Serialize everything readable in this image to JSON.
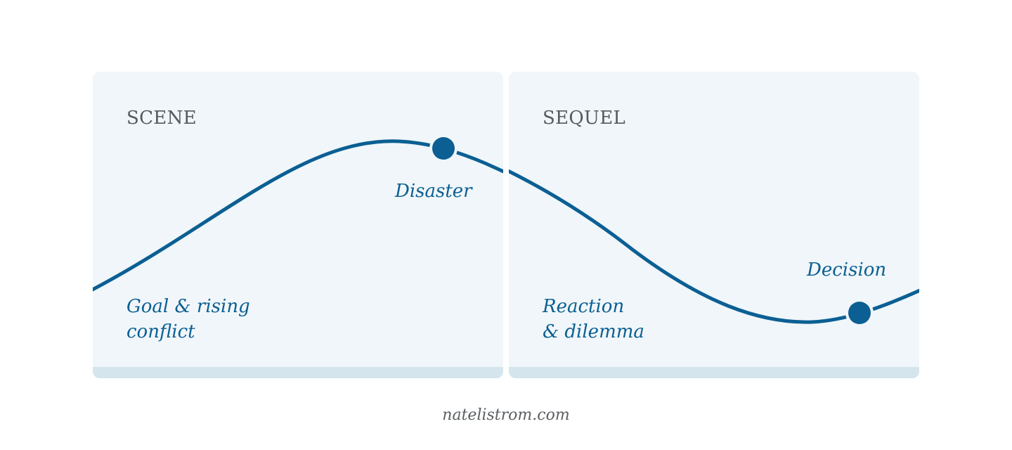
{
  "panels": {
    "scene": {
      "title": "SCENE"
    },
    "sequel": {
      "title": "SEQUEL"
    }
  },
  "curve": {
    "color": "#0b5f93",
    "points": {
      "disaster": {
        "label": "Disaster"
      },
      "decision": {
        "label": "Decision"
      }
    }
  },
  "labels": {
    "goal_line1": "Goal & rising",
    "goal_line2": "conflict",
    "reaction_line1": "Reaction",
    "reaction_line2": "& dilemma"
  },
  "footer": "natelistrom.com",
  "colors": {
    "panel_bg": "#f0f6f9",
    "panel_base": "#d4e5ed",
    "accent": "#0b5f93",
    "title_text": "#545a5f"
  }
}
